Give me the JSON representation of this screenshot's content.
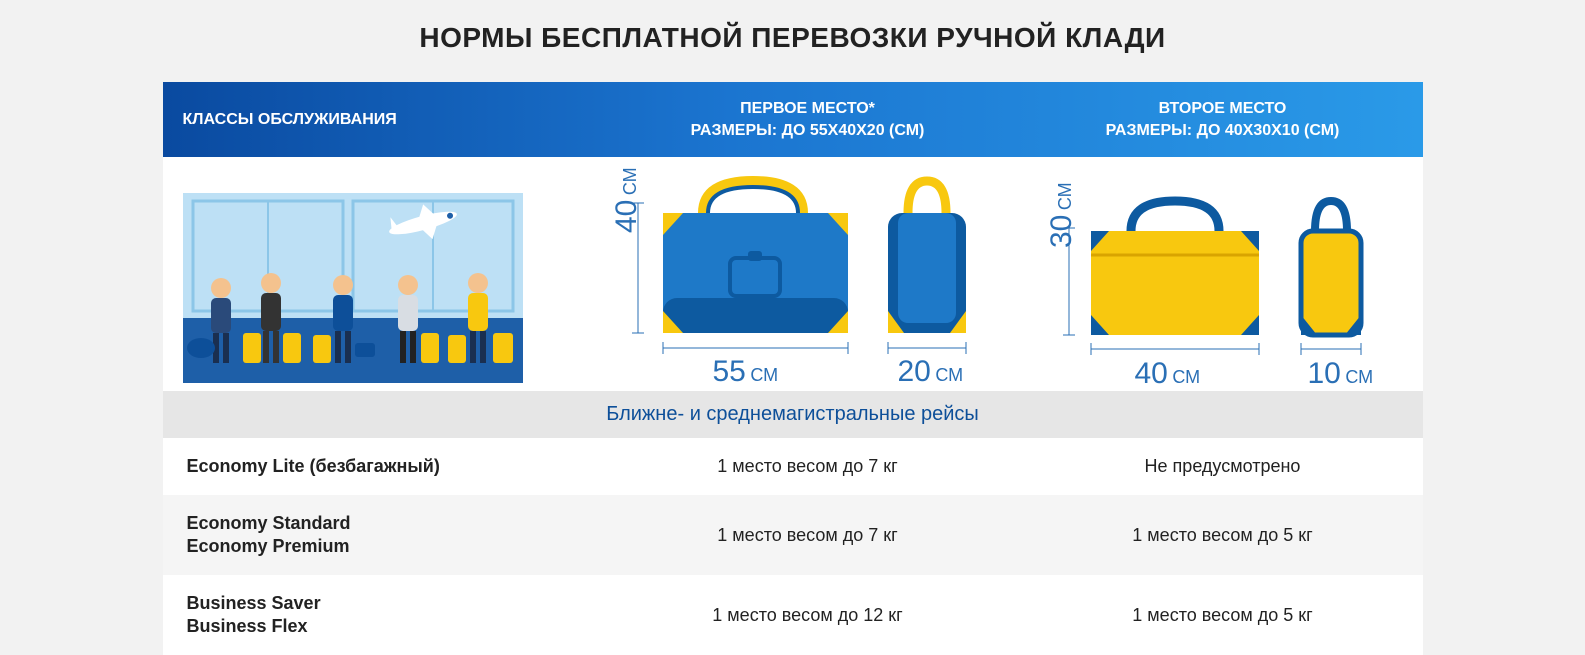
{
  "title": "НОРМЫ БЕСПЛАТНОЙ ПЕРЕВОЗКИ РУЧНОЙ КЛАДИ",
  "header": {
    "classes_label": "КЛАССЫ ОБСЛУЖИВАНИЯ",
    "first": {
      "line1": "ПЕРВОЕ МЕСТО*",
      "line2": "РАЗМЕРЫ: ДО 55Х40Х20 (СМ)"
    },
    "second": {
      "line1": "ВТОРОЕ МЕСТО",
      "line2": "РАЗМЕРЫ: ДО 40Х30Х10 (СМ)"
    }
  },
  "colors": {
    "brand_blue": "#0f5fb0",
    "accent_blue": "#1e79c8",
    "yellow": "#f8c80f",
    "dark_yellow": "#d9a400",
    "light_blue": "#66b3e6",
    "bg": "#f2f2f2"
  },
  "bags": {
    "first": {
      "height": "40",
      "width": "55",
      "depth": "20",
      "unit": "СМ"
    },
    "second": {
      "height": "30",
      "width": "40",
      "depth": "10",
      "unit": "СМ"
    }
  },
  "section_label": "Ближне- и среднемагистральные рейсы",
  "rows": [
    {
      "classes": [
        "Economy Lite (безбагажный)"
      ],
      "first": "1 место весом до 7 кг",
      "second": "Не предусмотрено",
      "alt": false
    },
    {
      "classes": [
        "Economy Standard",
        "Economy Premium"
      ],
      "first": "1 место весом до 7 кг",
      "second": "1 место весом до 5 кг",
      "alt": true
    },
    {
      "classes": [
        "Business Saver",
        "Business Flex"
      ],
      "first": "1 место весом до 12 кг",
      "second": "1 место весом до 5 кг",
      "alt": false
    }
  ]
}
